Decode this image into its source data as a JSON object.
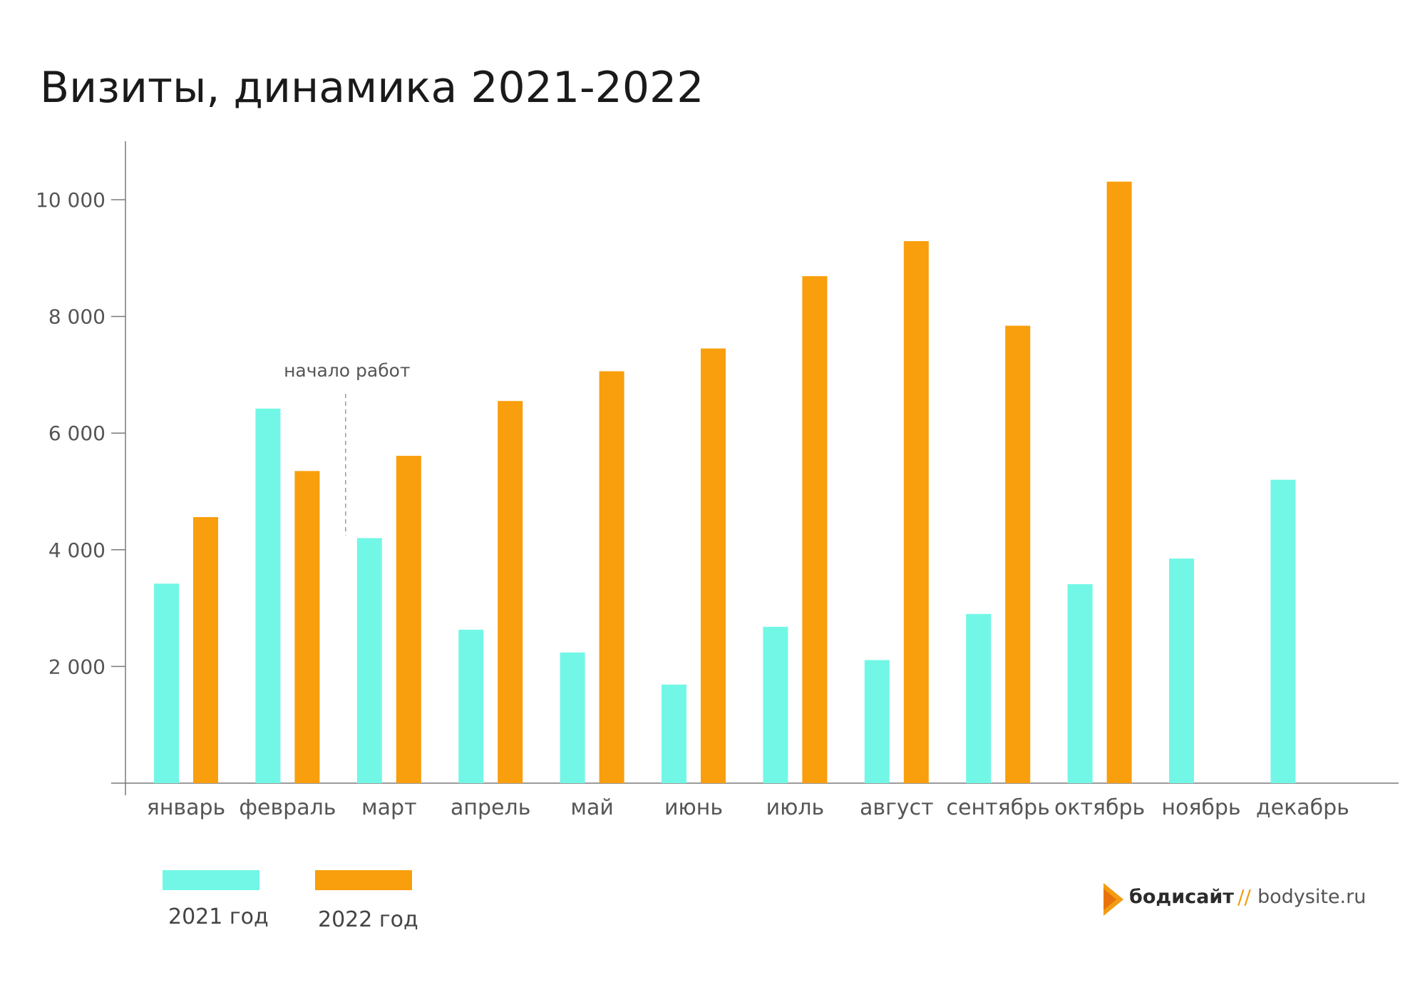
{
  "title": "Визиты, динамика 2021-2022",
  "colors": {
    "series_2021": "#72F7E6",
    "series_2022": "#F99E0C",
    "axis": "#7a7a7a"
  },
  "annotation": {
    "label": "начало работ",
    "category": "март"
  },
  "brand": {
    "logo_icon": "play-triangle-logo-icon",
    "name": "бодисайт",
    "separator": "//",
    "url": "bodysite.ru"
  },
  "legend": [
    {
      "label": "2021 год",
      "color": "#72F7E6"
    },
    {
      "label": "2022 год",
      "color": "#F99E0C"
    }
  ],
  "chart_data": {
    "type": "bar",
    "title": "Визиты, динамика 2021-2022",
    "xlabel": "",
    "ylabel": "",
    "ylim": [
      0,
      11000
    ],
    "yticks": [
      2000,
      4000,
      6000,
      8000,
      10000
    ],
    "ytick_labels": [
      "2 000",
      "4 000",
      "6 000",
      "8 000",
      "10 000"
    ],
    "grid": false,
    "legend_position": "bottom-left",
    "categories": [
      "январь",
      "февраль",
      "март",
      "апрель",
      "май",
      "июнь",
      "июль",
      "август",
      "сентябрь",
      "октябрь",
      "ноябрь",
      "декабрь"
    ],
    "series": [
      {
        "name": "2021 год",
        "values": [
          3420,
          6420,
          4200,
          2630,
          2240,
          1690,
          2680,
          2110,
          2900,
          3410,
          3850,
          5200
        ]
      },
      {
        "name": "2022 год",
        "values": [
          4560,
          5350,
          5610,
          6550,
          7060,
          7450,
          8690,
          9290,
          7840,
          10310,
          null,
          null
        ]
      }
    ]
  }
}
